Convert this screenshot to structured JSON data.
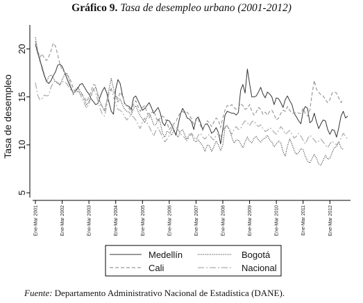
{
  "header": {
    "label": "Gráfico 9.",
    "title": "Tasa de desempleo urbano (2001-2012)"
  },
  "footer": {
    "source_label": "Fuente:",
    "source_text": "Departamento Administrativo Nacional de Estadística (DANE)."
  },
  "chart_data": {
    "type": "line",
    "ylabel": "Tasa de desempleo",
    "ylim": [
      4.5,
      22.5
    ],
    "yticks": [
      5,
      10,
      15,
      20
    ],
    "x_start": "Ene-Mar 2001",
    "x_frequency": "monthly rolling quarter",
    "xtick_labels": [
      "Ene-Mar 2001",
      "Ene-Mar 2002",
      "Ene-Mar 2003",
      "Ene-Mar 2004",
      "Ene-Mar 2005",
      "Ene-Mar 2006",
      "Ene-Mar 2007",
      "Ene-Mar 2008",
      "Ene-Mar 2009",
      "Ene-Mar 2010",
      "Ene-Mar 2011",
      "Ene-Mar 2012"
    ],
    "grid": false,
    "legend_position": "bottom",
    "series": [
      {
        "name": "Medellín",
        "style": "solid",
        "color": "#333333",
        "values": [
          20.5,
          19.6,
          18.9,
          18.0,
          17.2,
          16.6,
          16.4,
          16.7,
          17.2,
          17.6,
          18.3,
          18.4,
          18.2,
          17.6,
          17.0,
          16.4,
          15.9,
          15.4,
          15.6,
          15.9,
          16.3,
          16.4,
          16.0,
          15.6,
          15.3,
          14.8,
          14.5,
          14.2,
          14.3,
          15.0,
          15.6,
          16.0,
          15.4,
          14.4,
          13.5,
          13.2,
          15.8,
          16.8,
          16.4,
          15.2,
          14.3,
          14.1,
          14.0,
          13.7,
          14.9,
          15.1,
          14.6,
          14.1,
          13.6,
          13.8,
          14.1,
          14.4,
          13.9,
          13.3,
          13.6,
          13.9,
          13.3,
          12.3,
          12.0,
          12.6,
          12.5,
          12.1,
          11.6,
          11.0,
          12.1,
          13.2,
          13.8,
          13.4,
          12.8,
          12.7,
          12.4,
          11.6,
          12.7,
          12.9,
          12.3,
          11.6,
          12.1,
          12.2,
          11.8,
          11.2,
          11.4,
          11.8,
          11.3,
          10.1,
          11.6,
          13.1,
          13.5,
          13.4,
          13.3,
          13.3,
          13.1,
          13.4,
          15.7,
          16.3,
          15.4,
          17.9,
          16.4,
          15.0,
          15.0,
          15.1,
          15.5,
          16.0,
          15.3,
          14.9,
          15.5,
          15.3,
          15.0,
          14.2,
          14.9,
          14.8,
          14.4,
          13.9,
          14.7,
          15.1,
          14.6,
          14.2,
          13.3,
          12.9,
          12.5,
          12.2,
          13.5,
          14.0,
          13.8,
          12.3,
          12.5,
          13.3,
          12.4,
          11.7,
          12.2,
          12.6,
          12.5,
          11.6,
          11.1,
          11.6,
          11.5,
          10.8,
          11.8,
          13.0,
          13.5,
          12.8,
          13.0
        ]
      },
      {
        "name": "Bogotá",
        "style": "dotted",
        "color": "#444444",
        "values": [
          21.2,
          19.8,
          18.7,
          18.2,
          17.3,
          16.6,
          17.1,
          17.3,
          17.0,
          16.6,
          16.4,
          16.2,
          16.8,
          17.3,
          17.5,
          16.9,
          16.0,
          15.2,
          15.8,
          16.0,
          15.6,
          15.3,
          14.6,
          14.2,
          14.5,
          15.2,
          15.8,
          16.0,
          15.3,
          14.5,
          14.0,
          13.5,
          14.6,
          15.8,
          16.9,
          15.9,
          15.1,
          14.5,
          14.8,
          14.2,
          13.7,
          13.5,
          13.4,
          13.1,
          13.8,
          14.1,
          13.5,
          13.0,
          12.7,
          12.3,
          12.9,
          13.3,
          12.8,
          12.1,
          12.1,
          12.7,
          12.3,
          11.2,
          10.8,
          11.4,
          11.3,
          11.0,
          11.5,
          11.1,
          10.8,
          11.4,
          11.6,
          11.0,
          10.6,
          11.1,
          11.2,
          10.5,
          10.3,
          10.5,
          10.2,
          9.9,
          9.3,
          10.0,
          9.9,
          9.3,
          9.8,
          10.4,
          10.0,
          9.4,
          10.0,
          11.8,
          12.0,
          11.6,
          10.8,
          10.2,
          10.5,
          10.5,
          10.1,
          9.7,
          10.3,
          10.8,
          10.4,
          10.2,
          10.7,
          10.9,
          10.5,
          10.3,
          10.6,
          10.7,
          11.0,
          10.5,
          10.3,
          9.8,
          10.1,
          10.4,
          10.2,
          9.3,
          8.8,
          9.9,
          10.6,
          10.1,
          9.4,
          9.0,
          9.2,
          9.6,
          9.5,
          8.8,
          8.3,
          8.1,
          8.6,
          9.0,
          8.6,
          8.0,
          7.9,
          8.4,
          8.9,
          8.5,
          8.6,
          9.2,
          9.7,
          9.8,
          10.3,
          9.7,
          9.5
        ]
      },
      {
        "name": "Cali",
        "style": "dashed",
        "color": "#999999",
        "values": [
          20.8,
          19.9,
          19.1,
          19.5,
          19.0,
          18.8,
          19.2,
          19.8,
          20.6,
          20.3,
          19.4,
          18.4,
          17.8,
          17.6,
          17.3,
          17.1,
          16.6,
          15.9,
          15.4,
          15.6,
          15.4,
          15.2,
          14.9,
          14.5,
          15.0,
          15.6,
          16.3,
          16.2,
          15.1,
          14.3,
          14.0,
          13.6,
          14.5,
          15.4,
          15.8,
          15.5,
          15.2,
          14.8,
          15.5,
          15.1,
          14.4,
          14.0,
          13.8,
          13.4,
          14.2,
          14.6,
          14.0,
          13.5,
          13.9,
          14.1,
          13.4,
          12.8,
          13.3,
          13.6,
          12.9,
          12.4,
          12.9,
          13.0,
          12.8,
          12.3,
          11.6,
          11.9,
          12.2,
          12.4,
          13.0,
          13.3,
          13.5,
          13.3,
          13.4,
          13.1,
          12.7,
          12.1,
          12.5,
          12.7,
          12.0,
          11.5,
          12.1,
          12.5,
          12.3,
          11.9,
          12.4,
          12.8,
          12.6,
          11.8,
          12.8,
          13.6,
          14.1,
          14.0,
          14.2,
          13.9,
          13.7,
          13.9,
          14.3,
          14.1,
          13.7,
          13.8,
          14.2,
          13.5,
          13.1,
          13.4,
          13.9,
          13.7,
          13.2,
          13.4,
          13.1,
          13.5,
          13.6,
          13.2,
          12.6,
          12.8,
          13.3,
          13.6,
          13.5,
          14.0,
          13.6,
          13.3,
          13.3,
          13.4,
          13.3,
          13.3,
          13.8,
          13.3,
          13.0,
          13.6,
          15.3,
          16.7,
          15.8,
          15.5,
          15.2,
          15.1,
          14.7,
          14.4,
          14.7,
          15.4,
          15.5,
          15.4,
          14.9,
          14.4,
          14.8
        ]
      },
      {
        "name": "Nacional",
        "style": "dashdot",
        "color": "#aaaaaa",
        "values": [
          16.5,
          15.2,
          14.7,
          14.8,
          15.2,
          15.1,
          15.2,
          16.0,
          16.5,
          16.7,
          16.5,
          16.3,
          16.6,
          16.6,
          16.4,
          16.0,
          15.7,
          15.4,
          15.7,
          15.9,
          15.3,
          14.8,
          14.3,
          13.8,
          14.3,
          15.0,
          15.8,
          15.4,
          14.6,
          13.8,
          13.2,
          13.0,
          14.1,
          15.5,
          15.9,
          15.0,
          14.3,
          13.7,
          13.6,
          13.4,
          12.9,
          12.6,
          12.9,
          13.1,
          12.9,
          12.6,
          12.1,
          11.7,
          12.4,
          12.8,
          12.3,
          11.9,
          11.4,
          10.9,
          11.5,
          11.8,
          11.3,
          10.8,
          10.3,
          10.6,
          11.0,
          11.6,
          12.0,
          11.8,
          11.6,
          11.1,
          11.0,
          10.7,
          10.4,
          10.8,
          11.2,
          10.9,
          10.5,
          11.0,
          11.2,
          10.8,
          10.6,
          10.9,
          11.1,
          10.7,
          10.5,
          11.0,
          11.2,
          10.9,
          11.4,
          11.9,
          12.0,
          11.5,
          11.1,
          11.6,
          11.9,
          11.6,
          11.7,
          12.2,
          12.5,
          12.3,
          12.0,
          12.4,
          12.5,
          12.1,
          11.9,
          12.1,
          11.7,
          11.4,
          11.5,
          11.8,
          11.6,
          11.3,
          11.1,
          11.5,
          11.9,
          11.6,
          11.1,
          11.3,
          11.5,
          11.1,
          10.7,
          10.9,
          11.2,
          10.9,
          10.5,
          10.1,
          10.6,
          11.0,
          10.8,
          10.5,
          10.2,
          10.4,
          10.6,
          10.3,
          10.0,
          9.7,
          10.1,
          10.4,
          10.2,
          10.0,
          10.3,
          10.7,
          11.2,
          10.9,
          10.6
        ]
      }
    ]
  }
}
